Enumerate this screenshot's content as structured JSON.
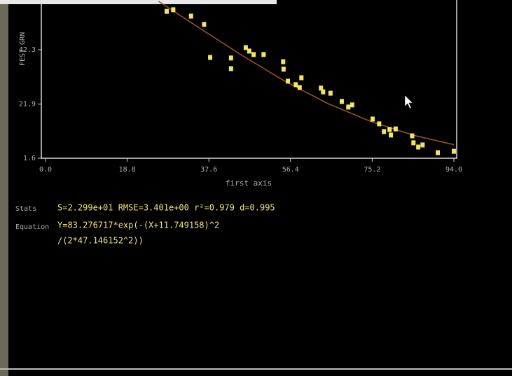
{
  "chart_data": {
    "type": "scatter",
    "ylabel": "FEST GRN",
    "xlabel": "first axis",
    "xlim": [
      0,
      94
    ],
    "ylim": [
      1.6,
      62
    ],
    "xticks": [
      {
        "value": 0,
        "label": "0.0"
      },
      18.8,
      37.6,
      56.4,
      75.2,
      {
        "value": 94,
        "label": "94.0"
      }
    ],
    "yticks": [
      1.6,
      21.9,
      42.3
    ],
    "color": "#f2e468",
    "x": [
      27.9,
      29.4,
      33.5,
      36.5,
      37.9,
      42.7,
      42.7,
      46.1,
      46.9,
      47.9,
      50.2,
      54.7,
      54.8,
      55.8,
      57.6,
      58.5,
      58.9,
      63.4,
      63.9,
      65.6,
      68.2,
      69.7,
      70.6,
      75.3,
      76.8,
      77.9,
      79.2,
      79.5,
      80.6,
      84.4,
      84.7,
      85.8,
      86.8,
      90.3,
      94.0
    ],
    "values": [
      56.7,
      57.3,
      54.9,
      51.8,
      39.4,
      39.2,
      35.2,
      43.1,
      41.8,
      40.5,
      40.5,
      37.8,
      35.0,
      30.5,
      29.2,
      28.1,
      31.8,
      27.9,
      26.5,
      26.0,
      22.9,
      20.8,
      21.6,
      16.3,
      14.5,
      11.6,
      12.4,
      10.3,
      12.6,
      10.0,
      7.4,
      5.8,
      6.6,
      3.7,
      4.2
    ],
    "fit": {
      "color": "#a0522d",
      "x": [
        26,
        35,
        45,
        55,
        65,
        75,
        85,
        94
      ],
      "values": [
        60.5,
        50.9,
        40.4,
        30.6,
        22.1,
        15.3,
        10.1,
        6.7
      ]
    }
  },
  "panel": {
    "stats_label": "Stats",
    "stats": "S=2.299e+01 RMSE=3.401e+00 r²=0.979 d=0.995",
    "equation_label": "Equation",
    "equation": [
      "Y=83.276717*exp(-(X+11.749158)^2",
      "/(2*47.146152^2))"
    ]
  }
}
